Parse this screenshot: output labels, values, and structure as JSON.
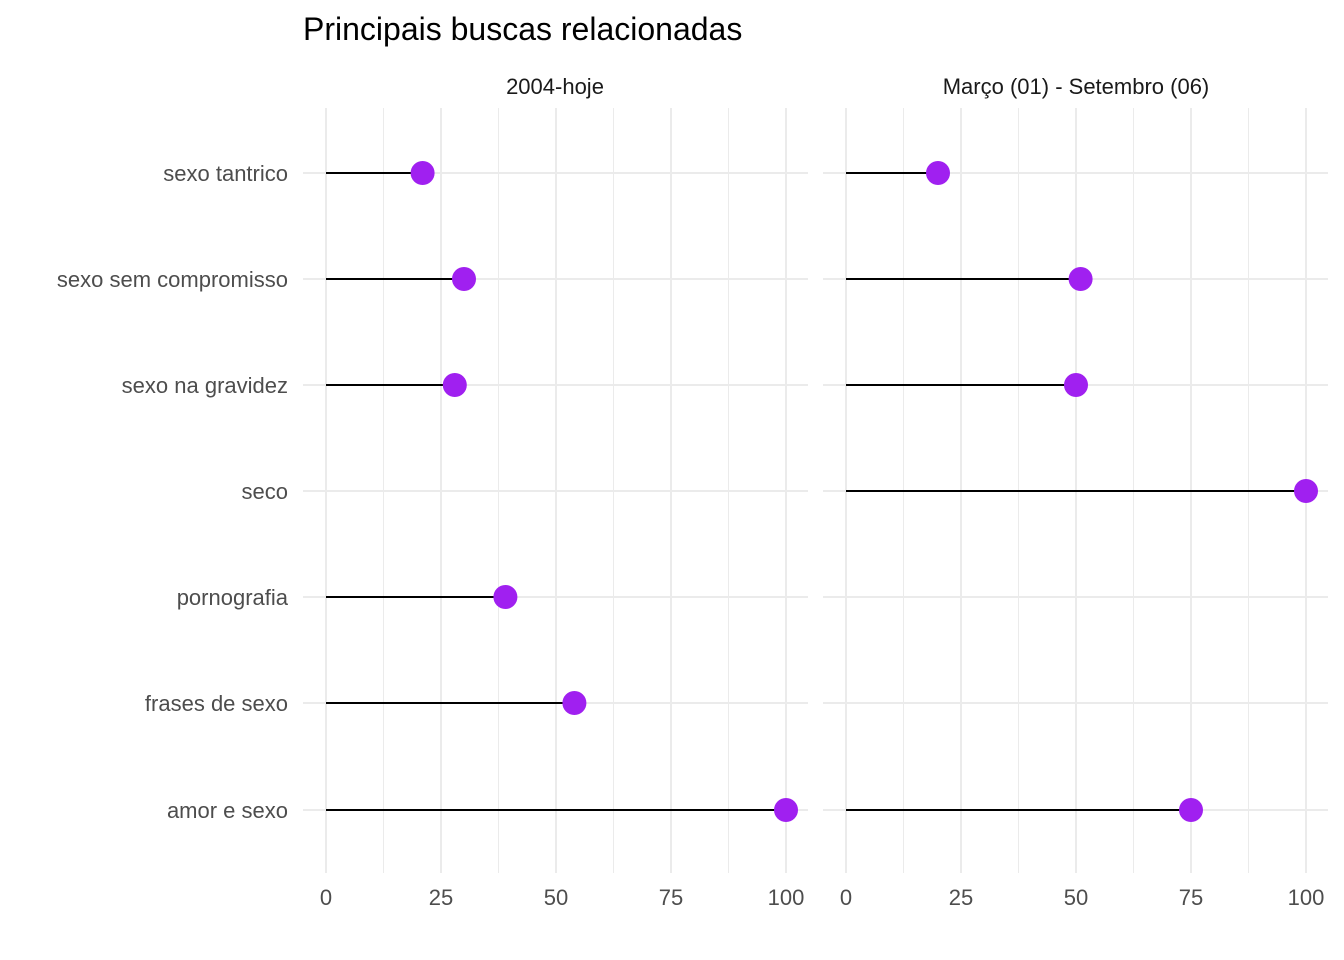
{
  "chart_data": {
    "type": "lollipop",
    "title": "Principais buscas relacionadas",
    "categories": [
      "sexo tantrico",
      "sexo sem compromisso",
      "sexo na gravidez",
      "seco",
      "pornografia",
      "frases de sexo",
      "amor e sexo"
    ],
    "x_ticks": [
      "0",
      "25",
      "50",
      "75",
      "100"
    ],
    "xlim": [
      0,
      100
    ],
    "point_color": "#A020F0",
    "stem_color": "#000000",
    "grid": true,
    "panels": [
      {
        "label": "2004-hoje",
        "values": [
          21,
          30,
          28,
          null,
          39,
          54,
          100
        ]
      },
      {
        "label": "Março (01) - Setembro (06)",
        "values": [
          20,
          51,
          50,
          100,
          null,
          null,
          75
        ]
      }
    ]
  }
}
